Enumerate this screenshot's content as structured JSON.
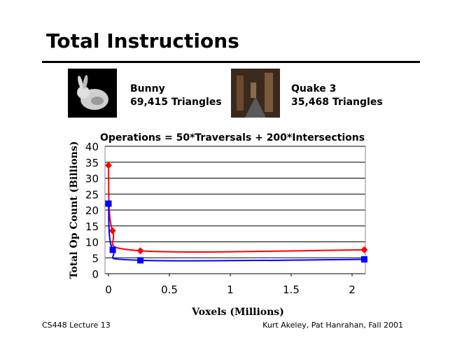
{
  "slide": {
    "title": "Total Instructions",
    "models": [
      {
        "name": "Bunny",
        "triangles": "69,415 Triangles"
      },
      {
        "name": "Quake 3",
        "triangles": "35,468 Triangles"
      }
    ],
    "footer_left": "CS448 Lecture 13",
    "footer_right": "Kurt Akeley, Pat Hanrahan, Fall 2001"
  },
  "chart_data": {
    "type": "line",
    "title": "Operations = 50*Traversals + 200*Intersections",
    "xlabel": "Voxels (Millions)",
    "ylabel": "Total Op Count (Billions)",
    "xlim": [
      0,
      2.1
    ],
    "ylim": [
      0,
      40
    ],
    "xticks": [
      "0",
      "0.5",
      "1",
      "1.5",
      "2"
    ],
    "yticks": [
      "0",
      "5",
      "10",
      "15",
      "20",
      "25",
      "30",
      "35",
      "40"
    ],
    "grid": true,
    "series": [
      {
        "name": "Bunny",
        "color": "#ff0000",
        "marker": "diamond",
        "x": [
          0.0,
          0.033,
          0.262,
          2.1
        ],
        "y": [
          34,
          13.5,
          7.2,
          7.5
        ]
      },
      {
        "name": "Quake 3",
        "color": "#0000ff",
        "marker": "square",
        "x": [
          0.0,
          0.035,
          0.262,
          2.1
        ],
        "y": [
          22,
          7.5,
          4.2,
          4.5
        ]
      }
    ]
  }
}
